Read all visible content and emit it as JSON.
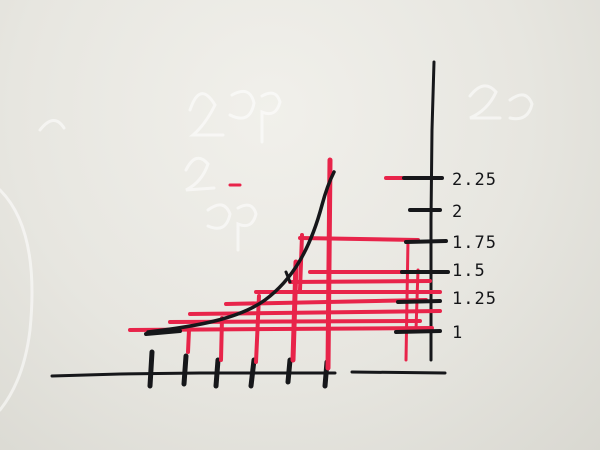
{
  "scene": {
    "surface": "whiteboard",
    "ink_colors": {
      "black": "#16171a",
      "red": "#e8244a"
    }
  },
  "axis_labels": [
    "2.25",
    "2",
    "1.75",
    "1.5",
    "1.25",
    "1"
  ]
}
